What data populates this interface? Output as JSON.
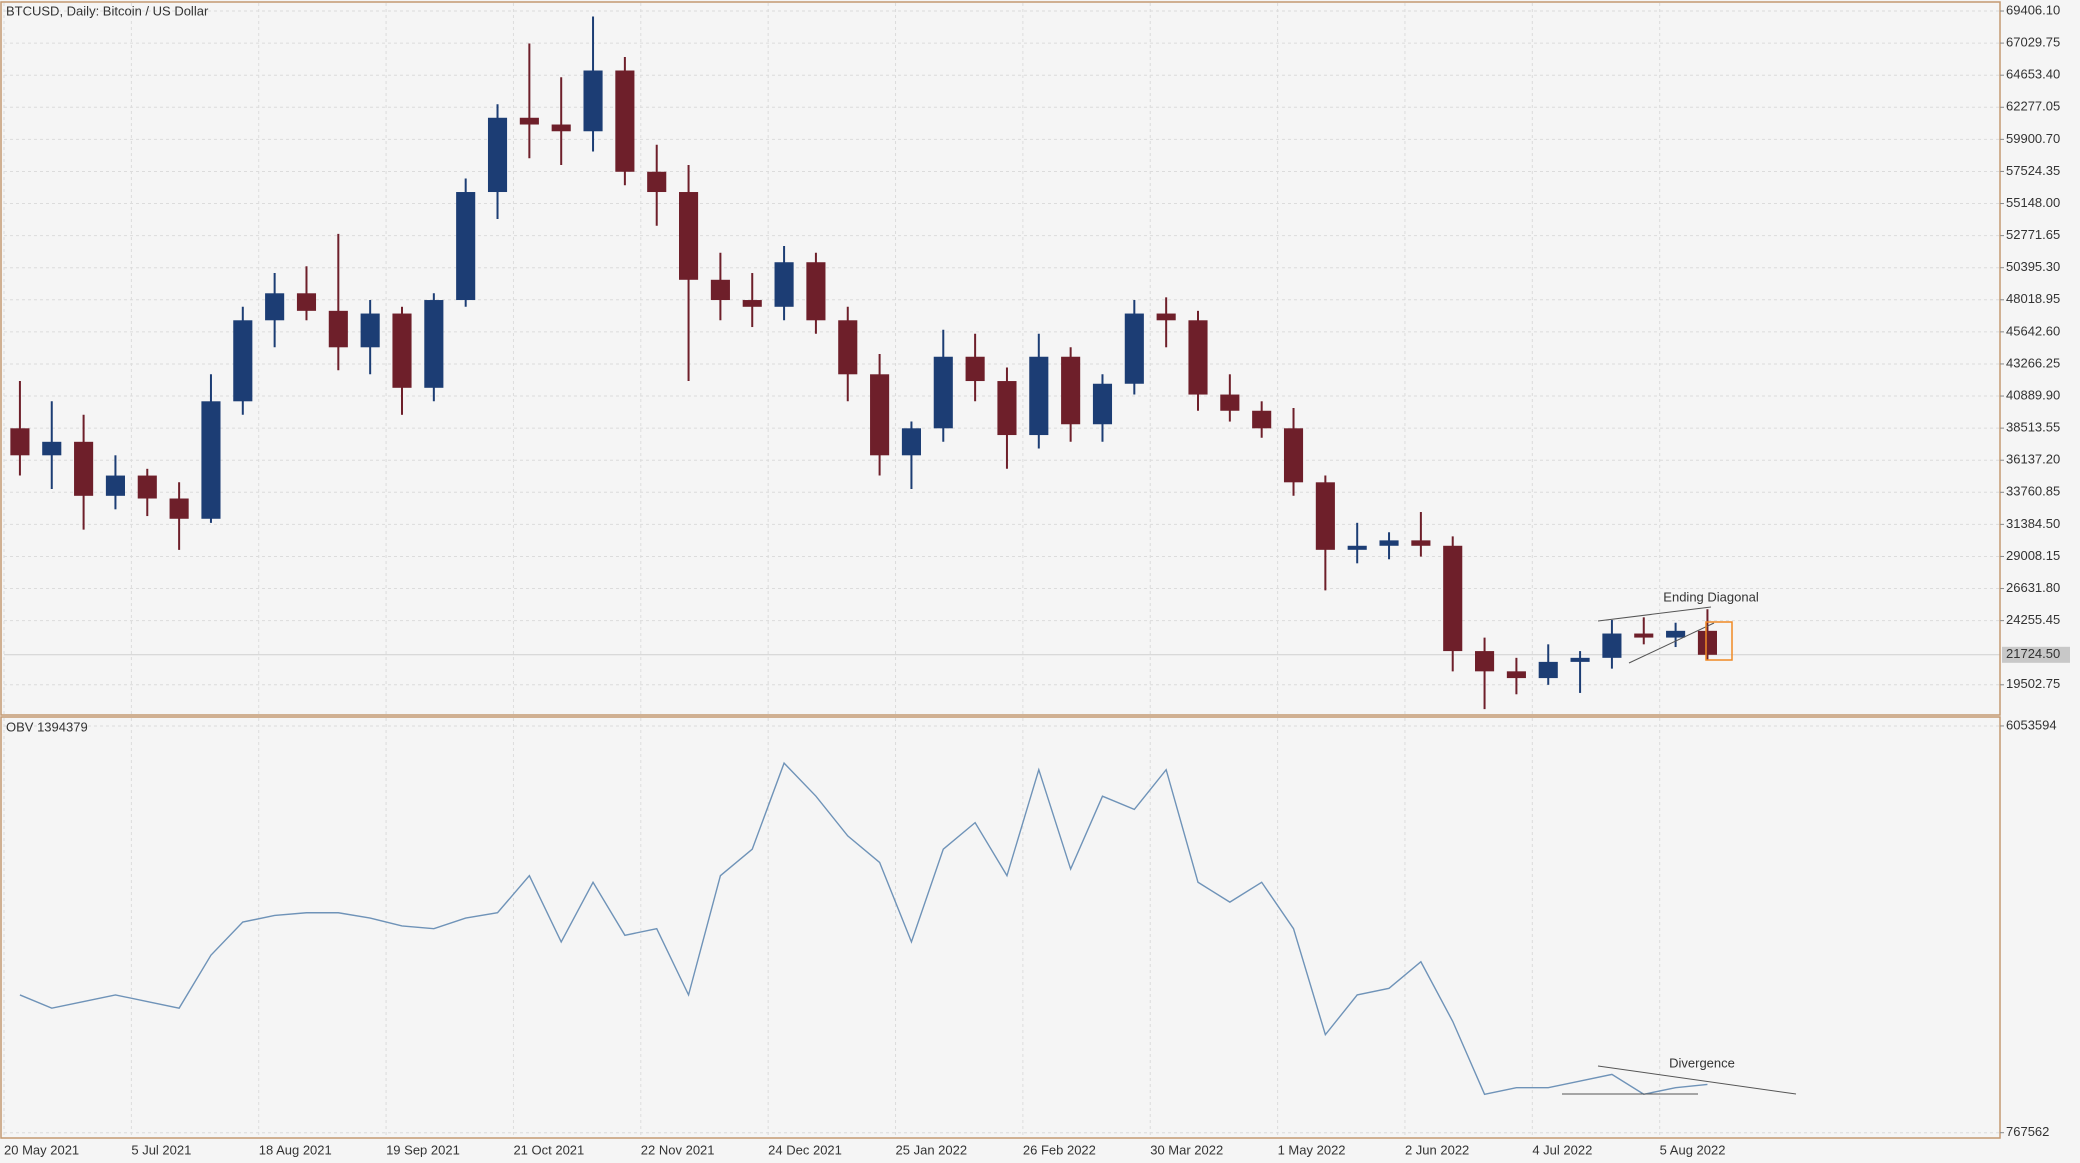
{
  "chart_data": [
    {
      "type": "candlestick",
      "title": "BTCUSD, Daily:  Bitcoin / US Dollar",
      "categories": [
        "20 May 2021",
        null,
        null,
        null,
        "5 Jul 2021",
        null,
        null,
        null,
        "18 Aug 2021",
        null,
        null,
        null,
        "19 Sep 2021",
        null,
        null,
        null,
        "21 Oct 2021",
        null,
        null,
        null,
        "22 Nov 2021",
        null,
        null,
        null,
        "24 Dec 2021",
        null,
        null,
        null,
        "25 Jan 2022",
        null,
        null,
        null,
        "26 Feb 2022",
        null,
        null,
        null,
        "30 Mar 2022",
        null,
        null,
        null,
        "1 May 2022",
        null,
        null,
        null,
        "2 Jun 2022",
        null,
        null,
        null,
        "4 Jul 2022",
        null,
        null,
        null,
        "5 Aug 2022",
        null
      ],
      "open": [
        38500,
        36500,
        37500,
        33500,
        35000,
        33300,
        31800,
        40500,
        46500,
        48500,
        47200,
        44500,
        47000,
        41500,
        48000,
        56000,
        61500,
        61000,
        60500,
        65000,
        57500,
        56000,
        49500,
        48000,
        47500,
        50800,
        46500,
        42500,
        36500,
        38500,
        43800,
        42000,
        38000,
        43800,
        38800,
        41800,
        47000,
        46500,
        41000,
        39800,
        38500,
        34500,
        29500,
        29800,
        30200,
        29800,
        22000,
        20500,
        20000,
        21200,
        21500,
        23300,
        23000,
        23500
      ],
      "high": [
        42000,
        40500,
        39500,
        36500,
        35500,
        34500,
        42500,
        47500,
        50000,
        50500,
        52900,
        48000,
        47500,
        48500,
        57000,
        62500,
        67000,
        64500,
        69000,
        66000,
        59500,
        58000,
        51500,
        50000,
        52000,
        51500,
        47500,
        44000,
        39000,
        45800,
        45500,
        43000,
        45500,
        44500,
        42500,
        48000,
        48200,
        47200,
        42500,
        40500,
        40000,
        35000,
        31500,
        30800,
        32300,
        30500,
        23000,
        21500,
        22500,
        22000,
        24300,
        24500,
        24100,
        25100
      ],
      "low": [
        35000,
        34000,
        31000,
        32500,
        32000,
        29500,
        31500,
        39500,
        44500,
        46500,
        42800,
        42500,
        39500,
        40500,
        47500,
        54000,
        58500,
        58000,
        59000,
        56500,
        53500,
        42000,
        46500,
        46000,
        46500,
        45500,
        40500,
        35000,
        34000,
        37500,
        40500,
        35500,
        37000,
        37500,
        37500,
        41000,
        44500,
        39800,
        39000,
        37800,
        33500,
        26500,
        28500,
        28800,
        29000,
        20500,
        17700,
        18800,
        19500,
        18900,
        20700,
        22500,
        22300,
        21300
      ],
      "close": [
        36500,
        37500,
        33500,
        35000,
        33300,
        31800,
        40500,
        46500,
        48500,
        47200,
        44500,
        47000,
        41500,
        48000,
        56000,
        61500,
        61000,
        60500,
        65000,
        57500,
        56000,
        49500,
        48000,
        47500,
        50800,
        46500,
        42500,
        36500,
        38500,
        43800,
        42000,
        38000,
        43800,
        38800,
        41800,
        47000,
        46500,
        41000,
        39800,
        38500,
        34500,
        29500,
        29800,
        30200,
        29800,
        22000,
        20500,
        20000,
        21200,
        21500,
        23300,
        23000,
        23500,
        21724.5
      ],
      "up_color": "#1c3d74",
      "down_color": "#6e1f2a",
      "ylim": [
        17340,
        70000
      ],
      "yticks": [
        19502.75,
        24255.45,
        {
          "value": 26631.8,
          "label": "26631.80"
        },
        29008.15,
        {
          "value": 31384.5,
          "label": "31384.50"
        },
        33760.85,
        {
          "value": 36137.2,
          "label": "36137.20"
        },
        38513.55,
        {
          "value": 40889.9,
          "label": "40889.90"
        },
        43266.25,
        {
          "value": 45642.6,
          "label": "45642.60"
        },
        48018.95,
        {
          "value": 50395.3,
          "label": "50395.30"
        },
        52771.65,
        {
          "value": 55148,
          "label": "55148.00"
        },
        57524.35,
        {
          "value": 59900.7,
          "label": "59900.70"
        },
        62277.05,
        {
          "value": 64653.4,
          "label": "64653.40"
        },
        67029.75,
        {
          "value": 69406.1,
          "label": "69406.10"
        }
      ],
      "grid": true,
      "last_price": {
        "value": 21724.5,
        "label": "21724.50"
      },
      "annotation": "Ending Diagonal"
    },
    {
      "type": "line",
      "title": "OBV 1394379",
      "color": "#6f93b8",
      "values": [
        2558000,
        2386000,
        2472000,
        2558000,
        2472000,
        2386000,
        3075000,
        3505000,
        3591000,
        3626000,
        3626000,
        3557000,
        3454000,
        3419000,
        3557000,
        3626000,
        4108000,
        3247000,
        4022000,
        3333000,
        3419000,
        2558000,
        4108000,
        4452000,
        5571000,
        5141000,
        4625000,
        4280000,
        3247000,
        4452000,
        4797000,
        4108000,
        5485000,
        4194000,
        5141000,
        4969000,
        5485000,
        4022000,
        3764000,
        4022000,
        3419000,
        2042000,
        2558000,
        2644000,
        2989000,
        2214000,
        1267000,
        1353000,
        1353000,
        1439000,
        1525000,
        1267000,
        1353000,
        1394379
      ],
      "ylim": [
        698690,
        6156900
      ],
      "yticks": [
        767562,
        6053594
      ],
      "grid": true,
      "annotation": "Divergence"
    }
  ]
}
